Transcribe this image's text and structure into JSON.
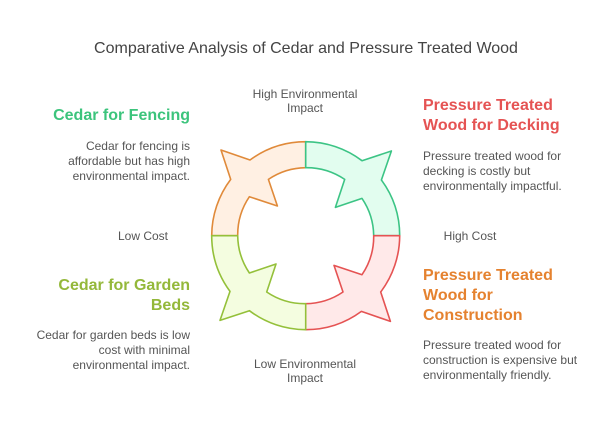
{
  "title": "Comparative Analysis of Cedar and Pressure Treated Wood",
  "axes": {
    "top": [
      "High Environmental",
      "Impact"
    ],
    "bottom": [
      "Low Environmental",
      "Impact"
    ],
    "left": "Low Cost",
    "right": "High Cost"
  },
  "quadrants": [
    {
      "position": "top-left",
      "heading": [
        "Cedar for Fencing"
      ],
      "description": [
        "Cedar for fencing is",
        "affordable but has high",
        "environmental impact."
      ],
      "color": "#3cc47c",
      "segment_fill": "#fff0e3",
      "segment_stroke": "#e08a3a"
    },
    {
      "position": "top-right",
      "heading": [
        "Pressure Treated",
        "Wood for Decking"
      ],
      "description": [
        "Pressure treated wood for",
        "decking is costly but",
        "environmentally impactful."
      ],
      "color": "#e55353",
      "segment_fill": "#e2fdef",
      "segment_stroke": "#3cc485"
    },
    {
      "position": "bottom-right",
      "heading": [
        "Pressure Treated",
        "Wood for",
        "Construction"
      ],
      "description": [
        "Pressure treated wood for",
        "construction is expensive but",
        "environmentally friendly."
      ],
      "color": "#e5822f",
      "segment_fill": "#ffe9e9",
      "segment_stroke": "#e55353"
    },
    {
      "position": "bottom-left",
      "heading": [
        "Cedar for Garden",
        "Beds"
      ],
      "description": [
        "Cedar for garden beds is low",
        "cost with minimal",
        "environmental impact."
      ],
      "color": "#94b83a",
      "segment_fill": "#f4fde0",
      "segment_stroke": "#94c03a"
    }
  ]
}
